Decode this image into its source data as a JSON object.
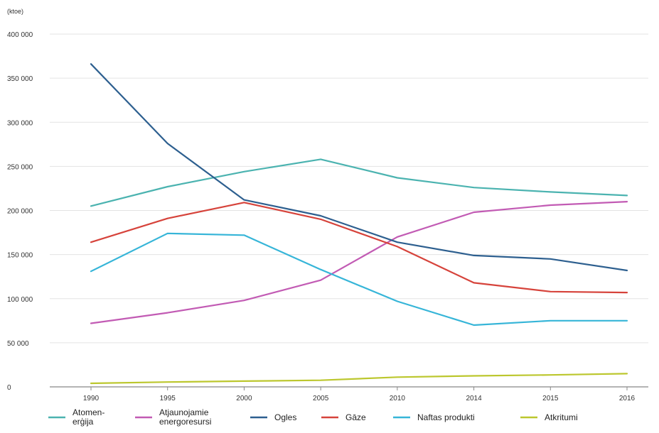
{
  "chart_data": {
    "type": "line",
    "title": "",
    "ylabel": "(ktoe)",
    "xlabel": "",
    "x": [
      "1990",
      "1995",
      "2000",
      "2005",
      "2010",
      "2014",
      "2015",
      "2016"
    ],
    "ylim": [
      0,
      400000
    ],
    "yticks": [
      0,
      50000,
      100000,
      150000,
      200000,
      250000,
      300000,
      350000,
      400000
    ],
    "ytick_labels": [
      "0",
      "50 000",
      "100 000",
      "150 000",
      "200 000",
      "250 000",
      "300 000",
      "350 000",
      "400 000"
    ],
    "grid": true,
    "legend_position": "bottom",
    "series": [
      {
        "name": "Atomen-\nerģija",
        "color": "#4bb3b0",
        "values": [
          205000,
          227000,
          244000,
          258000,
          237000,
          226000,
          221000,
          217000
        ]
      },
      {
        "name": "Atjaunojamie\nenergoresursi",
        "color": "#c25bb4",
        "values": [
          72000,
          84000,
          98000,
          121000,
          170000,
          198000,
          206000,
          210000
        ]
      },
      {
        "name": "Ogles",
        "color": "#2d5f8f",
        "values": [
          366000,
          276000,
          212000,
          194000,
          164000,
          149000,
          145000,
          132000
        ]
      },
      {
        "name": "Gāze",
        "color": "#d6433b",
        "values": [
          164000,
          191000,
          209000,
          190000,
          159000,
          118000,
          108000,
          107000
        ]
      },
      {
        "name": "Naftas produkti",
        "color": "#36b5d8",
        "values": [
          131000,
          174000,
          172000,
          133000,
          97000,
          70000,
          75000,
          75000
        ]
      },
      {
        "name": "Atkritumi",
        "color": "#bcc72e",
        "values": [
          4000,
          5500,
          6500,
          7500,
          11000,
          12500,
          13500,
          15000
        ]
      }
    ]
  }
}
